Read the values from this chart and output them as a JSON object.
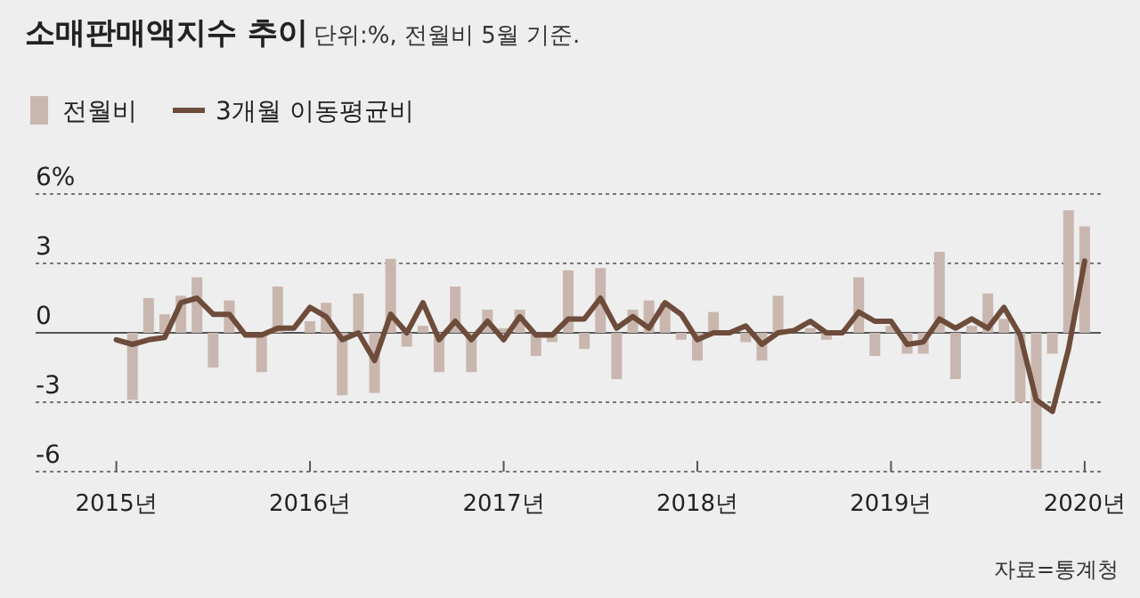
{
  "chart_data": {
    "type": "bar",
    "title": "소매판매액지수 추이",
    "subtitle": "단위:%, 전월비 5월 기준.",
    "x": [
      "2015-05",
      "2015-06",
      "2015-07",
      "2015-08",
      "2015-09",
      "2015-10",
      "2015-11",
      "2015-12",
      "2016-01",
      "2016-02",
      "2016-03",
      "2016-04",
      "2016-05",
      "2016-06",
      "2016-07",
      "2016-08",
      "2016-09",
      "2016-10",
      "2016-11",
      "2016-12",
      "2017-01",
      "2017-02",
      "2017-03",
      "2017-04",
      "2017-05",
      "2017-06",
      "2017-07",
      "2017-08",
      "2017-09",
      "2017-10",
      "2017-11",
      "2017-12",
      "2018-01",
      "2018-02",
      "2018-03",
      "2018-04",
      "2018-05",
      "2018-06",
      "2018-07",
      "2018-08",
      "2018-09",
      "2018-10",
      "2018-11",
      "2018-12",
      "2019-01",
      "2019-02",
      "2019-03",
      "2019-04",
      "2019-05",
      "2019-06",
      "2019-07",
      "2019-08",
      "2019-09",
      "2019-10",
      "2019-11",
      "2019-12",
      "2020-01",
      "2020-02",
      "2020-03",
      "2020-04",
      "2020-05"
    ],
    "series": [
      {
        "name": "전월비",
        "type": "bar",
        "color": "#c9b7af",
        "values": [
          null,
          -2.9,
          1.5,
          0.8,
          1.6,
          2.4,
          -1.5,
          1.4,
          null,
          -1.7,
          2.0,
          null,
          0.5,
          1.3,
          -2.7,
          1.7,
          -2.6,
          3.2,
          -0.6,
          0.3,
          -1.7,
          2.0,
          -1.7,
          1.0,
          0.2,
          1.0,
          -1.0,
          -0.4,
          2.7,
          -0.7,
          2.8,
          -2.0,
          1.0,
          1.4,
          1.3,
          -0.3,
          -1.2,
          0.9,
          0.1,
          -0.4,
          -1.2,
          1.6,
          null,
          0.2,
          -0.3,
          null,
          2.4,
          -1.0,
          0.3,
          -0.9,
          -0.9,
          3.5,
          -2.0,
          0.3,
          1.7,
          0.6,
          -3.0,
          -5.9,
          -0.9,
          5.3,
          4.6
        ]
      },
      {
        "name": "3개월 이동평균비",
        "type": "line",
        "color": "#6e4c3b",
        "values": [
          -0.3,
          -0.5,
          -0.3,
          -0.2,
          1.3,
          1.5,
          0.8,
          0.8,
          -0.1,
          -0.1,
          0.2,
          0.2,
          1.1,
          0.7,
          -0.3,
          0.0,
          -1.2,
          0.8,
          0.0,
          1.3,
          -0.3,
          0.5,
          -0.3,
          0.5,
          -0.3,
          0.7,
          -0.1,
          -0.1,
          0.6,
          0.6,
          1.5,
          0.2,
          0.7,
          0.2,
          1.3,
          0.8,
          -0.3,
          0.0,
          0.0,
          0.3,
          -0.5,
          0.0,
          0.1,
          0.5,
          0.0,
          0.0,
          0.9,
          0.5,
          0.5,
          -0.5,
          -0.4,
          0.6,
          0.2,
          0.6,
          0.2,
          1.1,
          -0.1,
          -2.9,
          -3.4,
          -0.7,
          3.1
        ]
      }
    ],
    "xlim": [
      "2014-12",
      "2020-06"
    ],
    "xticks": [
      {
        "value": "2015-05",
        "label": "2015년"
      },
      {
        "value": "2016-05",
        "label": "2016년"
      },
      {
        "value": "2017-05",
        "label": "2017년"
      },
      {
        "value": "2018-05",
        "label": "2018년"
      },
      {
        "value": "2019-05",
        "label": "2019년"
      },
      {
        "value": "2020-05",
        "label": "2020년"
      }
    ],
    "ylim": [
      -6,
      6
    ],
    "yticks": [
      {
        "value": -6,
        "label": "-6"
      },
      {
        "value": -3,
        "label": "-3"
      },
      0,
      3,
      {
        "value": 6,
        "label": "6%"
      }
    ],
    "grid": "y",
    "legend": "top left",
    "annotations": [
      "자료=통계청"
    ]
  }
}
